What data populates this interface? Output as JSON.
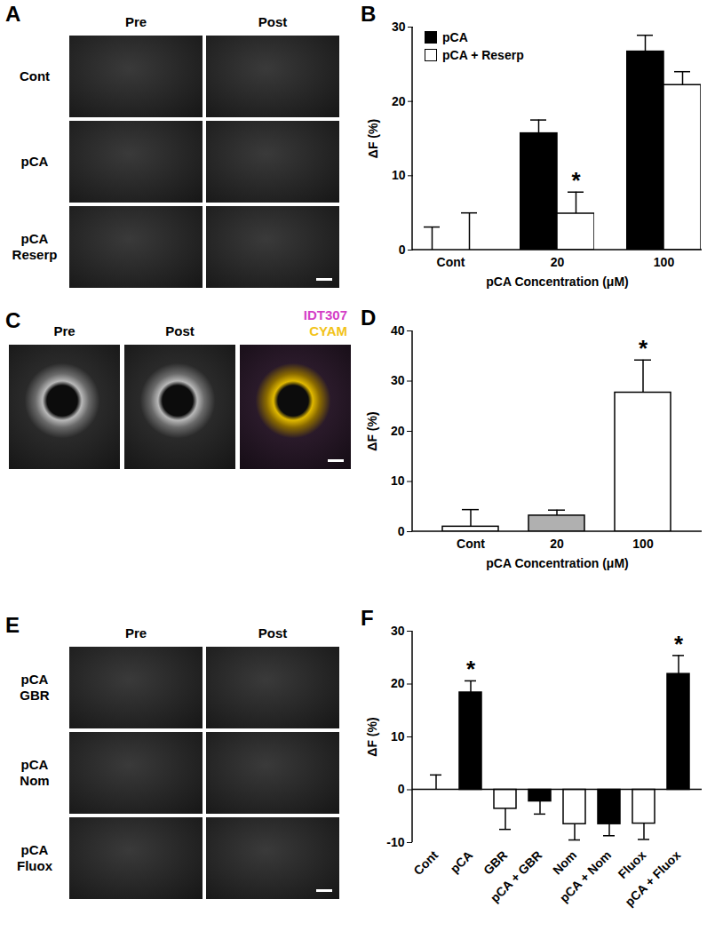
{
  "image_panels": [
    {
      "panel": "A",
      "columns": [
        "Pre",
        "Post"
      ],
      "rows": [
        "Cont",
        "pCA",
        "pCA\nReserp"
      ]
    },
    {
      "panel": "C",
      "columns": [
        "Pre",
        "Post"
      ],
      "overlay": [
        {
          "name": "IDT307",
          "color": "#d43fc6"
        },
        {
          "name": "CYAM",
          "color": "#f2c318"
        }
      ]
    },
    {
      "panel": "E",
      "columns": [
        "Pre",
        "Post"
      ],
      "rows": [
        "pCA\nGBR",
        "pCA\nNom",
        "pCA\nFluox"
      ]
    }
  ],
  "chart_data": [
    {
      "panel": "B",
      "type": "bar",
      "categories": [
        "Cont",
        "20",
        "100"
      ],
      "series": [
        {
          "name": "pCA",
          "color": "#000000",
          "values": [
            0,
            15.7,
            26.7
          ],
          "errors": [
            3.1,
            1.8,
            2.2
          ]
        },
        {
          "name": "pCA + Reserp",
          "color": "#ffffff",
          "values": [
            0,
            4.9,
            22.2
          ],
          "errors": [
            5.0,
            2.9,
            1.8
          ]
        }
      ],
      "x_label": "pCA Concentration (μM)",
      "y_label": "ΔF (%)",
      "ylim": [
        0,
        30
      ],
      "yticks": [
        0,
        10,
        20,
        30
      ],
      "legend": "top-left",
      "annotations": [
        {
          "text": "*",
          "category": "20",
          "series": "pCA + Reserp"
        }
      ]
    },
    {
      "panel": "D",
      "type": "bar",
      "categories": [
        "Cont",
        "20",
        "100"
      ],
      "values": [
        1.0,
        3.2,
        27.7
      ],
      "errors": [
        3.4,
        1.1,
        6.5
      ],
      "colors": [
        "#ffffff",
        "#b0b0b0",
        "#ffffff"
      ],
      "x_label": "pCA Concentration (μM)",
      "y_label": "ΔF (%)",
      "ylim": [
        0,
        40
      ],
      "yticks": [
        0,
        10,
        20,
        30,
        40
      ],
      "annotations": [
        {
          "text": "*",
          "category": "100"
        }
      ]
    },
    {
      "panel": "F",
      "type": "bar",
      "categories": [
        "Cont",
        "pCA",
        "GBR",
        "pCA + GBR",
        "Nom",
        "pCA + Nom",
        "Fluox",
        "pCA + Fluox"
      ],
      "values": [
        0,
        18.4,
        -3.6,
        -2.2,
        -6.5,
        -6.5,
        -6.4,
        21.9
      ],
      "errors": [
        2.8,
        2.2,
        3.9,
        2.4,
        3.0,
        2.2,
        3.0,
        3.5
      ],
      "colors": [
        "#ffffff",
        "#000000",
        "#ffffff",
        "#000000",
        "#ffffff",
        "#000000",
        "#ffffff",
        "#000000"
      ],
      "y_label": "ΔF (%)",
      "ylim": [
        -10,
        30
      ],
      "yticks": [
        -10,
        0,
        10,
        20,
        30
      ],
      "annotations": [
        {
          "text": "*",
          "category": "pCA"
        },
        {
          "text": "*",
          "category": "pCA + Fluox"
        }
      ]
    }
  ]
}
